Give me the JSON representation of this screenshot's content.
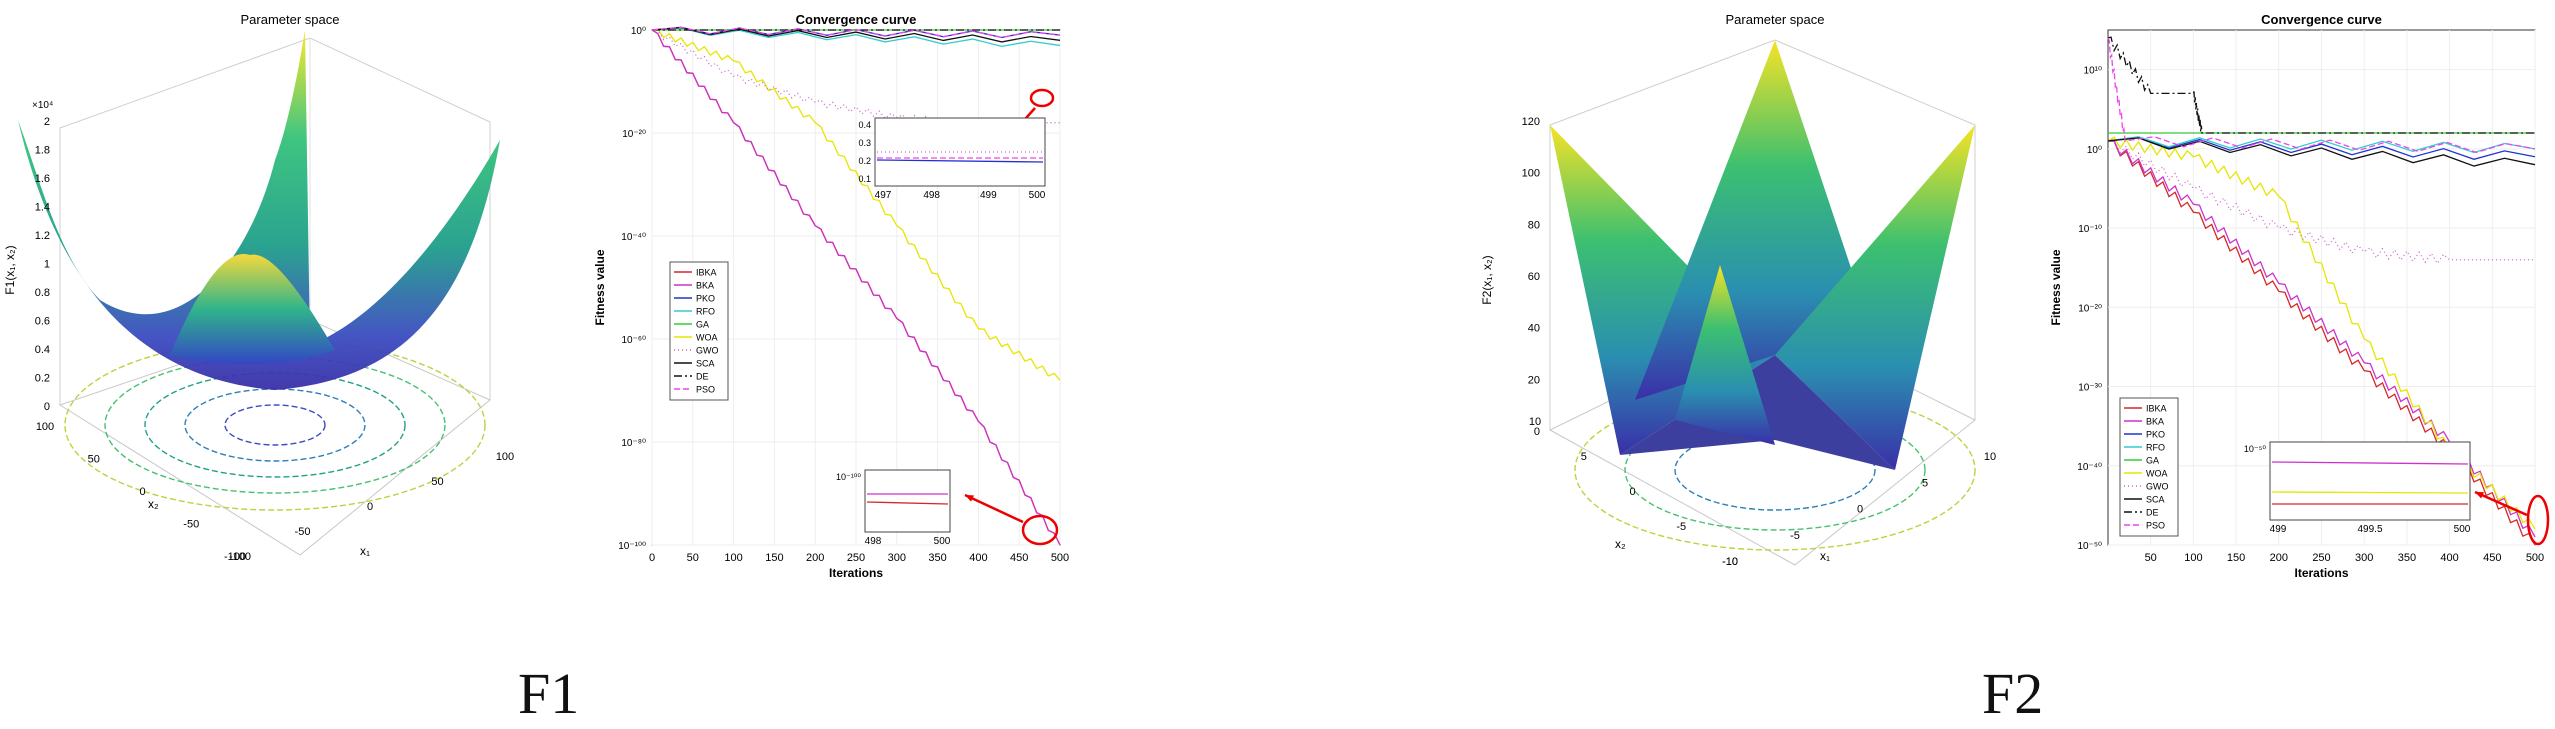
{
  "figures": [
    {
      "caption": "F1",
      "surface": {
        "title": "Parameter space",
        "zlabel": "F1(x₁, x₂)",
        "xlabel": "x₁",
        "ylabel": "x₂",
        "zticks": [
          "0",
          "0.2",
          "0.4",
          "0.6",
          "0.8",
          "1",
          "1.2",
          "1.4",
          "1.6",
          "1.8",
          "2"
        ],
        "zexp": "×10⁴",
        "xticks": [
          "-100",
          "-50",
          "0",
          "50",
          "100"
        ],
        "yticks": [
          "100",
          "50",
          "0",
          "-50",
          "-100"
        ]
      },
      "convergence": {
        "title": "Convergence curve",
        "xlabel": "Iterations",
        "ylabel": "Fitness value",
        "xticks": [
          "0",
          "50",
          "100",
          "150",
          "200",
          "250",
          "300",
          "350",
          "400",
          "450",
          "500"
        ],
        "yticks": [
          "10⁰",
          "10⁻²⁰",
          "10⁻⁴⁰",
          "10⁻⁶⁰",
          "10⁻⁸⁰",
          "10⁻¹⁰⁰"
        ],
        "inset_top": {
          "xticks": [
            "497",
            "498",
            "499",
            "500"
          ],
          "yticks": [
            "0.1",
            "0.2",
            "0.3",
            "0.4"
          ]
        },
        "inset_bottom": {
          "xticks": [
            "498",
            "500"
          ],
          "ytick": "10⁻¹⁰⁰"
        }
      }
    },
    {
      "caption": "F2",
      "surface": {
        "title": "Parameter space",
        "zlabel": "F2(x₁, x₂)",
        "xlabel": "x₁",
        "ylabel": "x₂",
        "zticks": [
          "0",
          "20",
          "40",
          "60",
          "80",
          "100",
          "120"
        ],
        "xticks": [
          "-10",
          "-5",
          "0",
          "5",
          "10"
        ],
        "yticks": [
          "10",
          "5",
          "0",
          "-5",
          "-10"
        ]
      },
      "convergence": {
        "title": "Convergence curve",
        "xlabel": "Iterations",
        "ylabel": "Fitness value",
        "xticks": [
          "50",
          "100",
          "150",
          "200",
          "250",
          "300",
          "350",
          "400",
          "450",
          "500"
        ],
        "yticks": [
          "10¹⁰",
          "10⁰",
          "10⁻¹⁰",
          "10⁻²⁰",
          "10⁻³⁰",
          "10⁻⁴⁰",
          "10⁻⁵⁰"
        ],
        "inset": {
          "xticks": [
            "499",
            "499.5",
            "500"
          ],
          "ytick": "10⁻⁵⁰"
        }
      }
    }
  ],
  "legend": [
    {
      "name": "IBKA",
      "color": "#d62728",
      "dash": "solid"
    },
    {
      "name": "BKA",
      "color": "#cc33cc",
      "dash": "solid"
    },
    {
      "name": "PKO",
      "color": "#2233cc",
      "dash": "solid"
    },
    {
      "name": "RFO",
      "color": "#33cccc",
      "dash": "solid"
    },
    {
      "name": "GA",
      "color": "#33cc33",
      "dash": "solid"
    },
    {
      "name": "WOA",
      "color": "#e6e600",
      "dash": "solid"
    },
    {
      "name": "GWO",
      "color": "#cc66cc",
      "dash": "dot"
    },
    {
      "name": "SCA",
      "color": "#111111",
      "dash": "solid"
    },
    {
      "name": "DE",
      "color": "#111111",
      "dash": "dashdot"
    },
    {
      "name": "PSO",
      "color": "#ee44ee",
      "dash": "dash"
    }
  ],
  "chart_data": [
    {
      "type": "line",
      "title": "Convergence curve",
      "xlabel": "Iterations",
      "ylabel": "Fitness value",
      "yscale": "log",
      "xlim": [
        0,
        500
      ],
      "ylim_exp": [
        -100,
        0
      ],
      "series_exp": [
        {
          "name": "IBKA",
          "points": [
            [
              0,
              0
            ],
            [
              100,
              -18
            ],
            [
              200,
              -38
            ],
            [
              300,
              -56
            ],
            [
              400,
              -76
            ],
            [
              500,
              -100
            ]
          ]
        },
        {
          "name": "BKA",
          "points": [
            [
              0,
              0
            ],
            [
              100,
              -18
            ],
            [
              200,
              -38
            ],
            [
              300,
              -56
            ],
            [
              400,
              -76
            ],
            [
              500,
              -100
            ]
          ]
        },
        {
          "name": "PKO",
          "points": [
            [
              0,
              0
            ],
            [
              500,
              -1
            ]
          ]
        },
        {
          "name": "RFO",
          "points": [
            [
              0,
              0
            ],
            [
              500,
              -3
            ]
          ]
        },
        {
          "name": "GA",
          "points": [
            [
              0,
              0
            ],
            [
              500,
              0
            ]
          ]
        },
        {
          "name": "WOA",
          "points": [
            [
              0,
              0
            ],
            [
              100,
              -6
            ],
            [
              200,
              -18
            ],
            [
              300,
              -38
            ],
            [
              400,
              -58
            ],
            [
              500,
              -68
            ]
          ]
        },
        {
          "name": "GWO",
          "points": [
            [
              0,
              0
            ],
            [
              100,
              -9
            ],
            [
              200,
              -14
            ],
            [
              300,
              -17
            ],
            [
              400,
              -18
            ],
            [
              500,
              -18
            ]
          ]
        },
        {
          "name": "SCA",
          "points": [
            [
              0,
              0
            ],
            [
              500,
              -2
            ]
          ]
        },
        {
          "name": "DE",
          "points": [
            [
              0,
              0
            ],
            [
              500,
              0
            ]
          ]
        },
        {
          "name": "PSO",
          "points": [
            [
              0,
              0
            ],
            [
              500,
              -1
            ]
          ]
        }
      ]
    },
    {
      "type": "line",
      "title": "Convergence curve",
      "xlabel": "Iterations",
      "ylabel": "Fitness value",
      "yscale": "log",
      "xlim": [
        0,
        500
      ],
      "ylim_exp": [
        -50,
        15
      ],
      "series_exp": [
        {
          "name": "IBKA",
          "points": [
            [
              0,
              1
            ],
            [
              100,
              -8
            ],
            [
              200,
              -18
            ],
            [
              300,
              -28
            ],
            [
              400,
              -38
            ],
            [
              500,
              -50
            ]
          ]
        },
        {
          "name": "BKA",
          "points": [
            [
              0,
              1
            ],
            [
              100,
              -7
            ],
            [
              200,
              -17
            ],
            [
              300,
              -27
            ],
            [
              400,
              -37
            ],
            [
              500,
              -49
            ]
          ]
        },
        {
          "name": "PKO",
          "points": [
            [
              0,
              1
            ],
            [
              500,
              -1
            ]
          ]
        },
        {
          "name": "RFO",
          "points": [
            [
              0,
              1
            ],
            [
              500,
              0
            ]
          ]
        },
        {
          "name": "GA",
          "points": [
            [
              0,
              2
            ],
            [
              500,
              2
            ]
          ]
        },
        {
          "name": "WOA",
          "points": [
            [
              0,
              1
            ],
            [
              100,
              -1
            ],
            [
              200,
              -6
            ],
            [
              300,
              -24
            ],
            [
              400,
              -38
            ],
            [
              500,
              -48
            ]
          ]
        },
        {
          "name": "GWO",
          "points": [
            [
              0,
              1
            ],
            [
              100,
              -5
            ],
            [
              200,
              -10
            ],
            [
              300,
              -13
            ],
            [
              400,
              -14
            ],
            [
              500,
              -14
            ]
          ]
        },
        {
          "name": "SCA",
          "points": [
            [
              0,
              1
            ],
            [
              500,
              -2
            ]
          ]
        },
        {
          "name": "DE",
          "points": [
            [
              0,
              14
            ],
            [
              50,
              7
            ],
            [
              100,
              7
            ],
            [
              110,
              2
            ],
            [
              500,
              2
            ]
          ]
        },
        {
          "name": "PSO",
          "points": [
            [
              0,
              14
            ],
            [
              20,
              1
            ],
            [
              500,
              0
            ]
          ]
        }
      ]
    }
  ]
}
